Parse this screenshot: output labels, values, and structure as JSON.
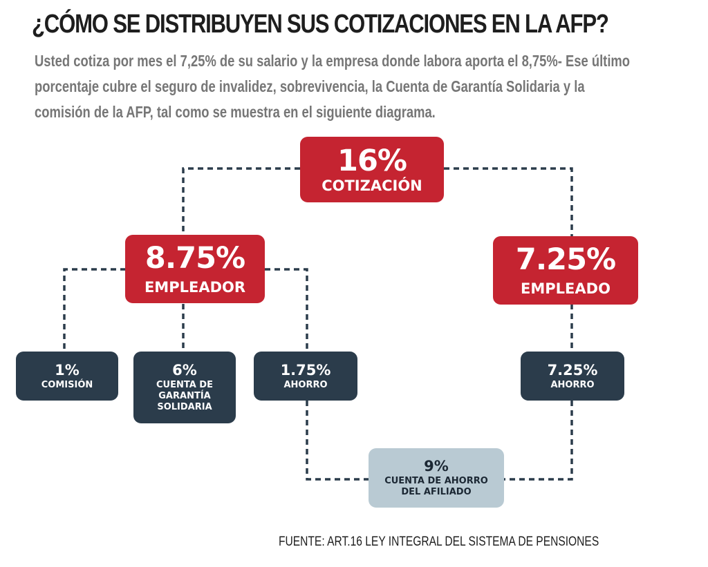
{
  "title": "¿CÓMO SE DISTRIBUYEN SUS COTIZACIONES EN LA AFP?",
  "intro": "Usted cotiza por mes el 7,25% de su salario y la empresa donde labora aporta el 8,75%- Ese último porcentaje cubre el seguro de invalidez, sobrevivencia, la Cuenta de Garantía Solidaria y la comisión de la AFP, tal como se muestra en el siguiente diagrama.",
  "diagram": {
    "total": {
      "pct": "16%",
      "label": "COTIZACIÓN"
    },
    "employer": {
      "pct": "8.75%",
      "label": "EMPLEADOR"
    },
    "employee": {
      "pct": "7.25%",
      "label": "EMPLEADO"
    },
    "commission": {
      "pct": "1%",
      "label": "COMISIÓN"
    },
    "solidarity": {
      "pct": "6%",
      "label": "CUENTA DE GARANTÍA SOLIDARIA"
    },
    "employer_savings": {
      "pct": "1.75%",
      "label": "AHORRO"
    },
    "employee_savings": {
      "pct": "7.25%",
      "label": "AHORRO"
    },
    "member_account": {
      "pct": "9%",
      "label": "CUENTA DE AHORRO DEL AFILIADO"
    }
  },
  "colors": {
    "red": "#c52431",
    "navy": "#2b3c4b",
    "light": "#b9cad3",
    "connector": "#2b3c4b"
  },
  "source": "FUENTE: ART.16 LEY INTEGRAL DEL SISTEMA DE PENSIONES"
}
